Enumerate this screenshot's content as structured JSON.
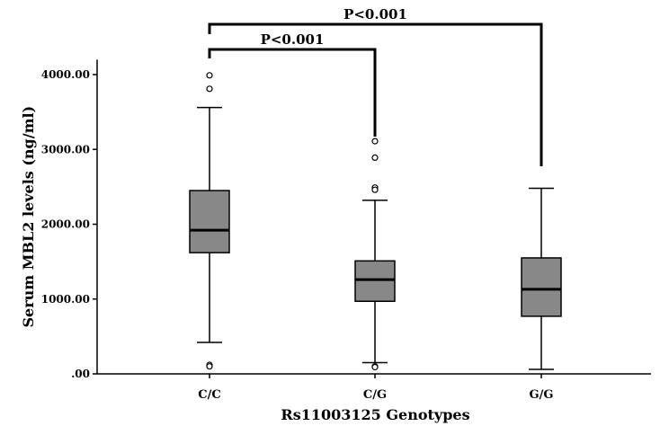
{
  "chart_data": {
    "type": "boxplot",
    "xlabel": "Rs11003125 Genotypes",
    "ylabel": "Serum MBL2 levels (ng/ml)",
    "ylim": [
      0,
      4200
    ],
    "yticks": [
      0,
      1000,
      2000,
      3000,
      4000
    ],
    "ytick_labels": [
      ".00",
      "1000.00",
      "2000.00",
      "3000.00",
      "4000.00"
    ],
    "grid": false,
    "box_color": "#888888",
    "categories": [
      "C/C",
      "C/G",
      "G/G"
    ],
    "boxes": [
      {
        "category": "C/C",
        "whisker_low": 420,
        "q1": 1620,
        "median": 1920,
        "q3": 2450,
        "whisker_high": 3560,
        "outliers": [
          3990,
          3810,
          120,
          100
        ]
      },
      {
        "category": "C/G",
        "whisker_low": 150,
        "q1": 970,
        "median": 1260,
        "q3": 1510,
        "whisker_high": 2320,
        "outliers": [
          3110,
          2890,
          2490,
          2460,
          100,
          90
        ]
      },
      {
        "category": "G/G",
        "whisker_low": 60,
        "q1": 770,
        "median": 1130,
        "q3": 1550,
        "whisker_high": 2480,
        "outliers": []
      }
    ],
    "annotations": [
      {
        "from": "C/C",
        "to": "C/G",
        "label": "P<0.001"
      },
      {
        "from": "C/C",
        "to": "G/G",
        "label": "P<0.001"
      }
    ]
  }
}
